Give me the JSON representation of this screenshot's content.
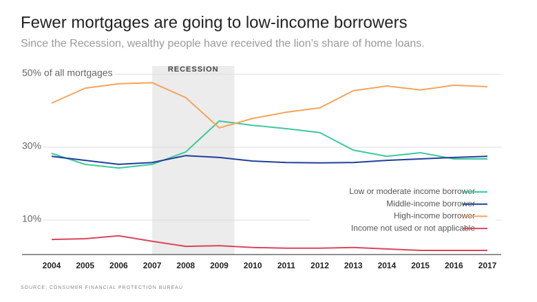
{
  "chart_data": {
    "type": "line",
    "title": "Fewer mortgages are going to low-income borrowers",
    "subtitle": "Since the Recession, wealthy people have received the lion’s share of home loans.",
    "source": "SOURCE: CONSUMER FINANCIAL PROTECTION BUREAU",
    "recession": {
      "label": "RECESSION",
      "span": [
        2007,
        2009.45
      ],
      "color": "#ececec"
    },
    "x": [
      2004,
      2005,
      2006,
      2007,
      2008,
      2009,
      2010,
      2011,
      2012,
      2013,
      2014,
      2015,
      2016,
      2017
    ],
    "xlim": [
      2004,
      2017
    ],
    "ylim": [
      0,
      50
    ],
    "yticks": [
      {
        "value": 50,
        "label": "50% of all mortgages"
      },
      {
        "value": 30,
        "label": "30%"
      },
      {
        "value": 10,
        "label": "10%"
      }
    ],
    "grid": true,
    "legend": "lower right",
    "series": [
      {
        "name": "Low or moderate income borrower",
        "color": "#3cc89c",
        "values": [
          28.3,
          25.3,
          24.3,
          25.3,
          28.7,
          37.2,
          36.0,
          35.1,
          34.0,
          29.2,
          27.5,
          28.5,
          26.8,
          26.8
        ]
      },
      {
        "name": "Middle-income borrower",
        "color": "#1f3f99",
        "values": [
          27.5,
          26.4,
          25.3,
          25.8,
          27.7,
          27.2,
          26.2,
          25.8,
          25.7,
          25.8,
          26.4,
          26.8,
          27.2,
          27.5
        ]
      },
      {
        "name": "High-income borrower",
        "color": "#f7a35a",
        "values": [
          42.1,
          46.2,
          47.4,
          47.7,
          43.6,
          35.3,
          37.9,
          39.6,
          40.8,
          45.5,
          46.8,
          45.7,
          47.0,
          46.6
        ]
      },
      {
        "name": "Income not used or not applicable",
        "color": "#d9455a",
        "values": [
          4.7,
          4.9,
          5.7,
          4.2,
          2.8,
          3.0,
          2.5,
          2.3,
          2.3,
          2.5,
          2.1,
          1.7,
          1.7,
          1.7
        ]
      }
    ]
  }
}
